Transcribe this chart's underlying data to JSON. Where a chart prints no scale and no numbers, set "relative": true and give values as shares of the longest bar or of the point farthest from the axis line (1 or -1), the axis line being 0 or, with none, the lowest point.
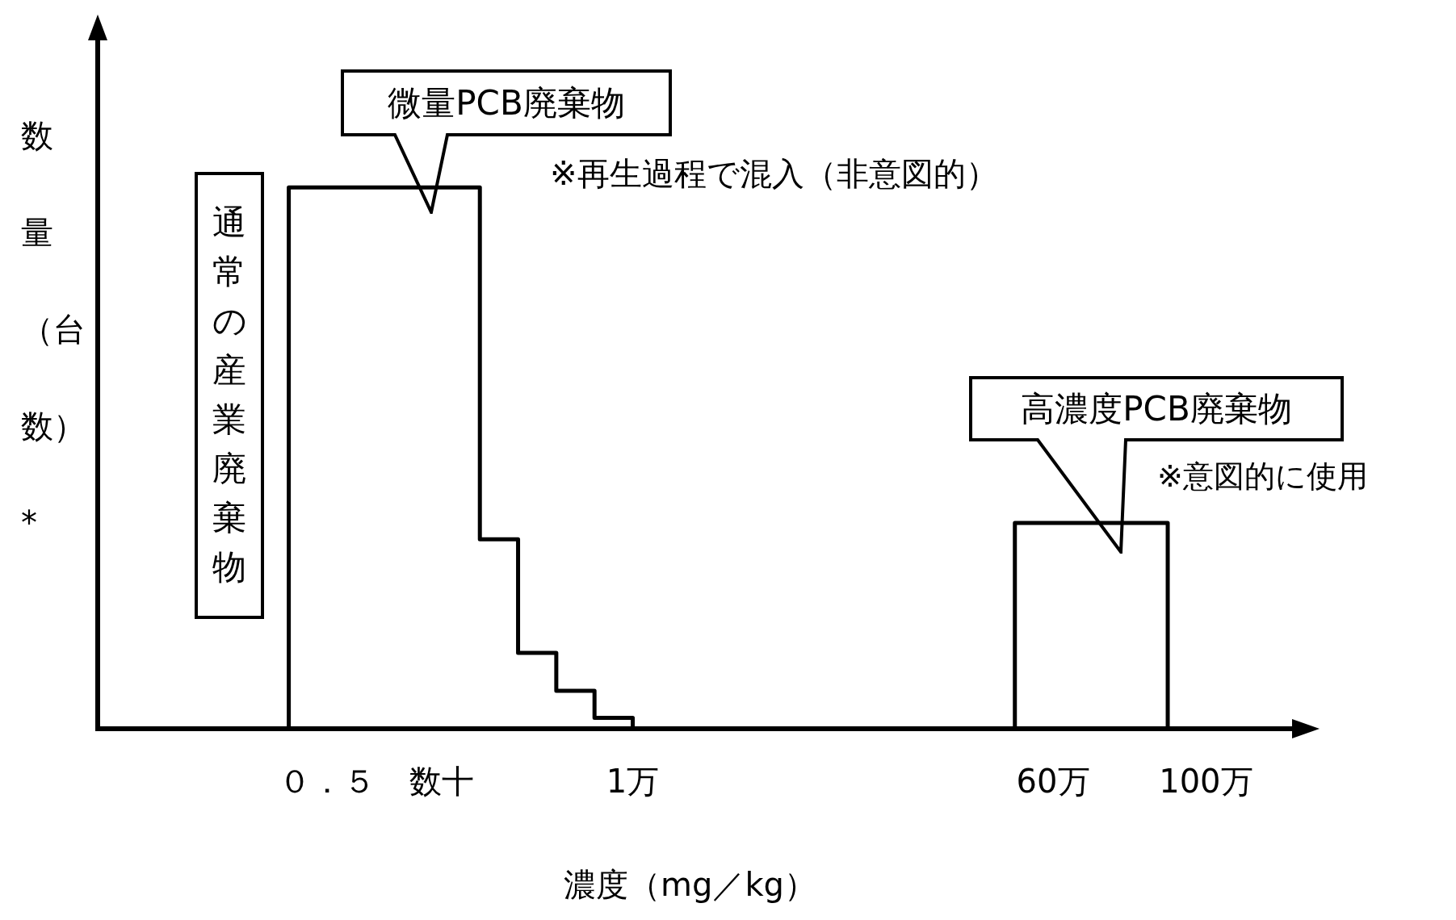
{
  "chart_data": {
    "type": "step",
    "relative": true,
    "xlabel": "濃度（mg／kg）",
    "ylabel": "数量（台数）*",
    "marker": "none",
    "categories": [
      null,
      null,
      null,
      null,
      null,
      null,
      "０．５",
      null,
      null,
      "数十",
      null,
      null,
      null,
      null,
      "1万",
      null,
      null,
      null,
      null,
      null,
      null,
      null,
      null,
      null,
      null,
      "60万",
      null,
      null,
      null,
      "100万",
      null,
      null
    ],
    "series": [
      {
        "type": "step",
        "color": "#000000",
        "values": [
          null,
          null,
          null,
          null,
          null,
          0,
          1,
          1,
          1,
          1,
          1,
          0.35,
          0.14,
          0.07,
          0.02,
          0,
          null,
          null,
          null,
          null,
          null,
          null,
          null,
          null,
          0,
          0.38,
          0.38,
          0.38,
          0.38,
          0,
          null,
          null
        ]
      }
    ],
    "annotations": [
      "微量PCB廃棄物",
      "※再生過程で混入（非意図的）",
      "通常の産業廃棄物",
      "高濃度PCB廃棄物",
      "※意図的に使用"
    ]
  }
}
